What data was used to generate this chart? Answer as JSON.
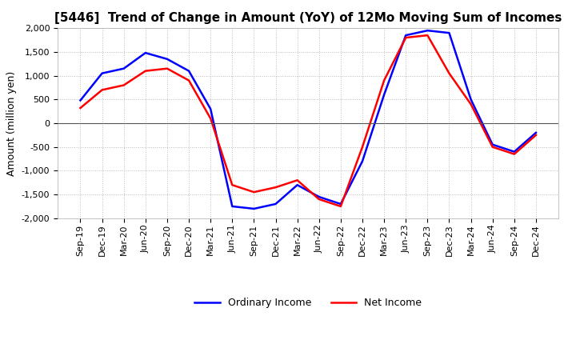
{
  "title": "[5446]  Trend of Change in Amount (YoY) of 12Mo Moving Sum of Incomes",
  "ylabel": "Amount (million yen)",
  "x_labels": [
    "Sep-19",
    "Dec-19",
    "Mar-20",
    "Jun-20",
    "Sep-20",
    "Dec-20",
    "Mar-21",
    "Jun-21",
    "Sep-21",
    "Dec-21",
    "Mar-22",
    "Jun-22",
    "Sep-22",
    "Dec-22",
    "Mar-23",
    "Jun-23",
    "Sep-23",
    "Dec-23",
    "Mar-24",
    "Jun-24",
    "Sep-24",
    "Dec-24"
  ],
  "ordinary_income": [
    480,
    1050,
    1150,
    1480,
    1350,
    1100,
    300,
    -1750,
    -1800,
    -1700,
    -1300,
    -1550,
    -1700,
    -800,
    600,
    1850,
    1950,
    1900,
    500,
    -450,
    -600,
    -200
  ],
  "net_income": [
    320,
    700,
    800,
    1100,
    1150,
    900,
    100,
    -1300,
    -1450,
    -1350,
    -1200,
    -1600,
    -1750,
    -500,
    900,
    1800,
    1850,
    1050,
    400,
    -500,
    -650,
    -250
  ],
  "ordinary_income_color": "#0000ff",
  "net_income_color": "#ff0000",
  "ylim": [
    -2000,
    2000
  ],
  "yticks": [
    -2000,
    -1500,
    -1000,
    -500,
    0,
    500,
    1000,
    1500,
    2000
  ],
  "background_color": "#ffffff",
  "grid_color": "#bbbbbb",
  "title_fontsize": 11,
  "axis_fontsize": 9,
  "tick_fontsize": 8,
  "legend_fontsize": 9,
  "line_width": 1.8
}
